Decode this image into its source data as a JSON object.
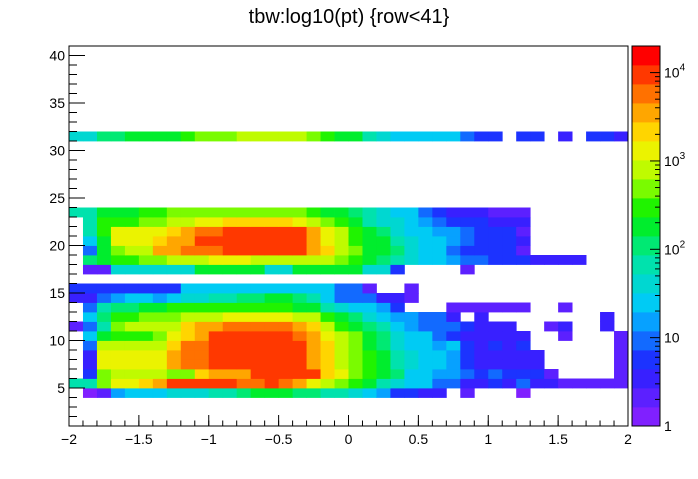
{
  "chart_data": {
    "type": "heatmap",
    "title": "tbw:log10(pt) {row<41}",
    "xlabel": "",
    "ylabel": "",
    "xlim": [
      -2,
      2
    ],
    "ylim": [
      1,
      41
    ],
    "x_bin_width": 0.1,
    "y_bin_width": 1,
    "x_tick_labels": [
      "−2",
      "−1.5",
      "−1",
      "−0.5",
      "0",
      "0.5",
      "1",
      "1.5",
      "2"
    ],
    "x_ticks": [
      -2,
      -1.5,
      -1,
      -0.5,
      0,
      0.5,
      1,
      1.5,
      2
    ],
    "y_tick_labels": [
      "5",
      "10",
      "15",
      "20",
      "25",
      "30",
      "35",
      "40"
    ],
    "y_ticks": [
      5,
      10,
      15,
      20,
      25,
      30,
      35,
      40
    ],
    "z_scale": "log",
    "z_range": [
      1,
      20000
    ],
    "z_tick_labels": [
      {
        "value": 1,
        "base": "1",
        "exp": ""
      },
      {
        "value": 10,
        "base": "10",
        "exp": ""
      },
      {
        "value": 100,
        "base": "10",
        "exp": "2"
      },
      {
        "value": 1000,
        "base": "10",
        "exp": "3"
      },
      {
        "value": 10000,
        "base": "10",
        "exp": "4"
      }
    ],
    "rows": [
      {
        "y": 4,
        "x_start": -1.9,
        "values": [
          1,
          2,
          15,
          25,
          25,
          30,
          40,
          45,
          50,
          60,
          70,
          100,
          150,
          150,
          150,
          100,
          100,
          80,
          60,
          40,
          20,
          15,
          7,
          5,
          4,
          3,
          0,
          2,
          0,
          0,
          0,
          1
        ]
      },
      {
        "y": 5,
        "x_start": -2.0,
        "values": [
          80,
          80,
          400,
          1200,
          1200,
          1800,
          3000,
          8000,
          9000,
          9000,
          10000,
          8000,
          6000,
          7000,
          8000,
          5000,
          3000,
          1500,
          800,
          600,
          250,
          150,
          80,
          40,
          25,
          20,
          10,
          10,
          3,
          3,
          5,
          3,
          10,
          3,
          3,
          2,
          2,
          2,
          2,
          2
        ]
      },
      {
        "y": 6,
        "x_start": -2.0,
        "values": [
          0,
          6,
          500,
          800,
          900,
          800,
          800,
          500,
          600,
          2000,
          3000,
          3000,
          4000,
          8000,
          9000,
          11000,
          10000,
          8000,
          2000,
          1200,
          500,
          250,
          180,
          100,
          30,
          20,
          15,
          15,
          8,
          5,
          10,
          5,
          5,
          5,
          2,
          0,
          0,
          0,
          0,
          2
        ]
      },
      {
        "y": 7,
        "x_start": -2.0,
        "values": [
          0,
          4,
          1500,
          1500,
          1500,
          1500,
          1500,
          3000,
          5000,
          5000,
          10000,
          10000,
          10000,
          11000,
          11000,
          11000,
          10000,
          3000,
          2000,
          1000,
          400,
          250,
          150,
          80,
          50,
          25,
          20,
          15,
          5,
          3,
          3,
          3,
          4,
          4,
          0,
          0,
          0,
          0,
          0,
          2
        ]
      },
      {
        "y": 8,
        "x_start": -2.0,
        "values": [
          0,
          4,
          1500,
          1500,
          1500,
          1500,
          1500,
          3000,
          5000,
          5000,
          10000,
          10000,
          10000,
          11000,
          11000,
          11000,
          10000,
          3000,
          2000,
          1000,
          400,
          250,
          150,
          80,
          50,
          25,
          20,
          15,
          5,
          3,
          3,
          3,
          4,
          4,
          0,
          0,
          0,
          0,
          0,
          2
        ]
      },
      {
        "y": 9,
        "x_start": -2.0,
        "values": [
          0,
          8,
          800,
          800,
          1000,
          1000,
          1000,
          2000,
          6000,
          7000,
          10000,
          10000,
          8000,
          11000,
          11000,
          10000,
          8000,
          3000,
          2000,
          1000,
          400,
          150,
          100,
          40,
          20,
          20,
          15,
          20,
          5,
          4,
          5,
          4,
          6,
          0,
          0,
          0,
          0,
          0,
          0,
          2
        ]
      },
      {
        "y": 10,
        "x_start": -2.0,
        "values": [
          0,
          20,
          200,
          300,
          300,
          300,
          500,
          1500,
          2000,
          3000,
          8000,
          8000,
          8000,
          10000,
          10000,
          10000,
          6000,
          3000,
          1500,
          800,
          500,
          200,
          100,
          40,
          20,
          30,
          10,
          5,
          3,
          3,
          3,
          3,
          3,
          0,
          0,
          2,
          0,
          0,
          0,
          2
        ]
      },
      {
        "y": 11,
        "x_start": -2.0,
        "values": [
          2,
          10,
          80,
          500,
          800,
          800,
          800,
          1000,
          2000,
          3000,
          4000,
          5000,
          5000,
          6000,
          6000,
          5000,
          4000,
          2000,
          1000,
          300,
          200,
          100,
          60,
          30,
          15,
          10,
          8,
          8,
          5,
          3,
          3,
          3,
          0,
          0,
          2,
          3,
          0,
          0,
          3,
          0
        ]
      },
      {
        "y": 12,
        "x_start": -2.0,
        "values": [
          0,
          30,
          100,
          350,
          350,
          600,
          600,
          600,
          1000,
          1000,
          1000,
          1200,
          1200,
          1200,
          1200,
          1200,
          1000,
          800,
          300,
          150,
          100,
          50,
          20,
          15,
          15,
          10,
          10,
          3,
          0,
          3,
          0,
          0,
          0,
          0,
          0,
          0,
          0,
          0,
          3,
          0
        ]
      },
      {
        "y": 13,
        "x_start": -2.0,
        "values": [
          0,
          10,
          60,
          100,
          100,
          150,
          200,
          300,
          300,
          300,
          300,
          250,
          300,
          300,
          300,
          250,
          200,
          150,
          80,
          50,
          30,
          20,
          12,
          7,
          0,
          0,
          0,
          2,
          2,
          2,
          2,
          2,
          2,
          0,
          0,
          2,
          0,
          0,
          0,
          0
        ]
      },
      {
        "y": 14,
        "x_start": -2.0,
        "values": [
          3,
          3,
          10,
          15,
          20,
          20,
          15,
          20,
          40,
          50,
          60,
          80,
          100,
          120,
          150,
          150,
          100,
          60,
          20,
          10,
          10,
          10,
          3,
          3,
          2,
          0,
          0,
          0,
          0,
          0,
          0,
          0,
          0,
          0,
          0,
          0,
          0,
          0,
          0,
          0
        ]
      },
      {
        "y": 15,
        "x_start": -2.0,
        "values": [
          5,
          5,
          5,
          5,
          5,
          5,
          5,
          5,
          25,
          25,
          25,
          25,
          25,
          25,
          25,
          25,
          25,
          25,
          25,
          10,
          10,
          2,
          0,
          0,
          2,
          0,
          0,
          0,
          0,
          0,
          0,
          0,
          0,
          0,
          0,
          0,
          0,
          0,
          0,
          0
        ]
      },
      {
        "y": 17,
        "x_start": -2.0,
        "values": [
          0,
          2,
          2,
          50,
          50,
          50,
          50,
          50,
          50,
          150,
          150,
          150,
          150,
          150,
          50,
          50,
          150,
          150,
          150,
          150,
          150,
          50,
          50,
          5,
          0,
          0,
          0,
          0,
          2,
          0,
          0,
          0,
          0,
          0,
          0,
          0,
          0,
          0,
          0,
          0
        ]
      },
      {
        "y": 18,
        "x_start": -2.0,
        "values": [
          0,
          100,
          200,
          300,
          300,
          400,
          600,
          800,
          800,
          800,
          1200,
          1200,
          1200,
          1000,
          800,
          800,
          800,
          800,
          800,
          400,
          300,
          150,
          100,
          70,
          50,
          30,
          20,
          15,
          10,
          10,
          5,
          5,
          5,
          3,
          3,
          3,
          3,
          0,
          0,
          0
        ]
      },
      {
        "y": 19,
        "x_start": -2.0,
        "values": [
          0,
          10,
          200,
          600,
          1000,
          1000,
          3000,
          4000,
          6000,
          6000,
          7000,
          8000,
          8000,
          8000,
          10000,
          10000,
          10000,
          3000,
          2000,
          1000,
          400,
          200,
          150,
          100,
          50,
          30,
          20,
          10,
          5,
          5,
          5,
          5,
          2,
          0,
          0,
          0,
          0,
          0,
          0,
          0
        ]
      },
      {
        "y": 20,
        "x_start": -2.0,
        "values": [
          0,
          30,
          200,
          1200,
          1200,
          1500,
          2000,
          3000,
          3000,
          8000,
          10000,
          10000,
          10000,
          10000,
          10000,
          10000,
          10000,
          3000,
          1500,
          800,
          300,
          200,
          150,
          60,
          40,
          30,
          20,
          15,
          10,
          5,
          5,
          5,
          3,
          0,
          0,
          0,
          0,
          0,
          0,
          0
        ]
      },
      {
        "y": 21,
        "x_start": -2.0,
        "values": [
          0,
          80,
          300,
          1500,
          1500,
          1500,
          1500,
          2000,
          3000,
          5000,
          6000,
          8000,
          8000,
          8000,
          8000,
          8000,
          8000,
          3000,
          1500,
          800,
          300,
          150,
          100,
          50,
          30,
          20,
          15,
          12,
          8,
          5,
          5,
          5,
          2,
          0,
          0,
          0,
          0,
          0,
          0,
          0
        ]
      },
      {
        "y": 22,
        "x_start": -2.0,
        "values": [
          0,
          60,
          300,
          300,
          300,
          400,
          600,
          800,
          1000,
          1200,
          1500,
          2000,
          2500,
          2500,
          2500,
          2000,
          1500,
          1000,
          600,
          300,
          150,
          80,
          50,
          40,
          20,
          15,
          10,
          5,
          5,
          5,
          3,
          3,
          3,
          0,
          0,
          0,
          0,
          0,
          0,
          0
        ]
      },
      {
        "y": 23,
        "x_start": -2.0,
        "values": [
          80,
          80,
          200,
          200,
          200,
          300,
          300,
          400,
          500,
          500,
          500,
          500,
          600,
          600,
          600,
          500,
          400,
          300,
          200,
          150,
          100,
          60,
          40,
          30,
          20,
          10,
          5,
          3,
          3,
          3,
          2,
          2,
          2,
          0,
          0,
          0,
          0,
          0,
          0,
          0
        ]
      },
      {
        "y": 31,
        "x_start": -2.0,
        "values": [
          50,
          50,
          100,
          100,
          150,
          150,
          200,
          200,
          300,
          500,
          600,
          600,
          800,
          800,
          800,
          800,
          800,
          500,
          300,
          200,
          150,
          80,
          40,
          30,
          30,
          30,
          30,
          20,
          10,
          5,
          5,
          0,
          5,
          5,
          0,
          3,
          0,
          5,
          5,
          3
        ]
      }
    ]
  }
}
